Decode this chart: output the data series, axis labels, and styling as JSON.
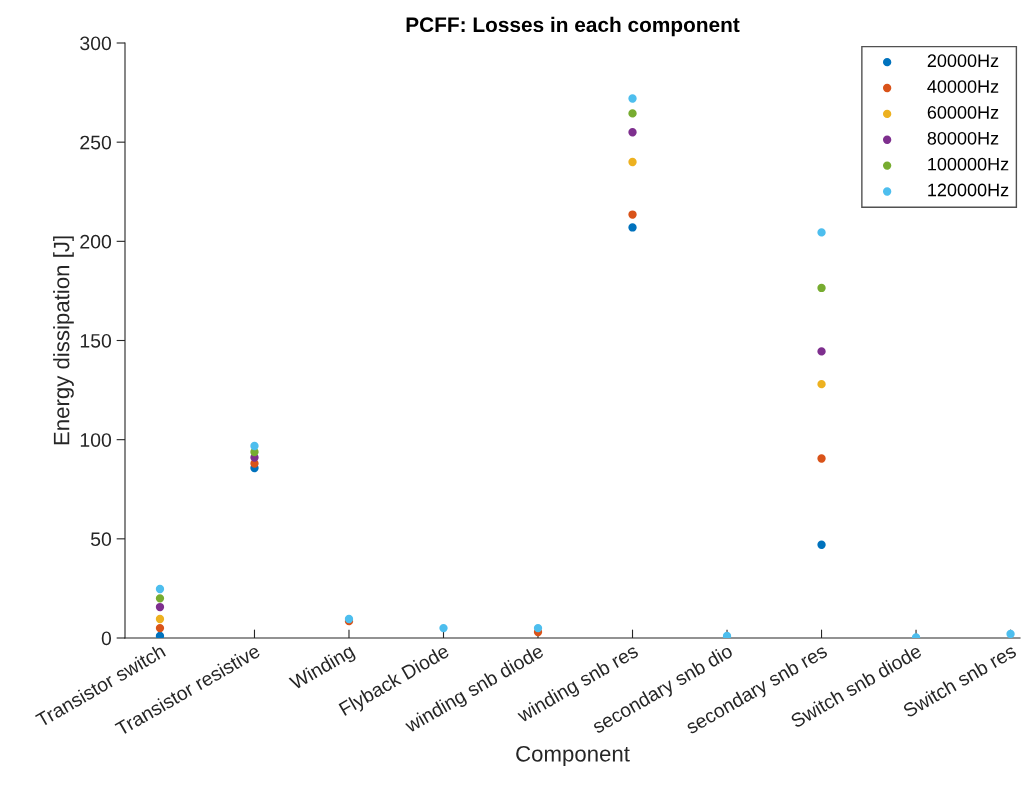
{
  "chart_data": {
    "type": "scatter",
    "title": "PCFF: Losses in each component",
    "xlabel": "Component",
    "ylabel": "Energy dissipation [J]",
    "categories": [
      "Transistor switch",
      "Transistor resistive",
      "Winding",
      "Flyback Diode",
      "winding snb diode",
      "winding snb res",
      "secondary snb dio",
      "secondary snb res",
      "Switch snb diode",
      "Switch snb res"
    ],
    "series": [
      {
        "name": "20000Hz",
        "color": "#0072bd",
        "values": [
          1,
          85.7,
          null,
          null,
          null,
          207,
          null,
          47,
          null,
          null
        ]
      },
      {
        "name": "40000Hz",
        "color": "#d95319",
        "values": [
          5,
          88,
          8.5,
          null,
          3,
          213.5,
          null,
          90.5,
          null,
          null
        ]
      },
      {
        "name": "60000Hz",
        "color": "#edb120",
        "values": [
          9.6,
          null,
          null,
          null,
          null,
          240,
          null,
          128,
          null,
          null
        ]
      },
      {
        "name": "80000Hz",
        "color": "#7e2f8e",
        "values": [
          15.6,
          91,
          null,
          null,
          null,
          255,
          null,
          144.5,
          null,
          null
        ]
      },
      {
        "name": "100000Hz",
        "color": "#77ac30",
        "values": [
          20,
          93.8,
          null,
          null,
          null,
          264.5,
          null,
          176.5,
          null,
          null
        ]
      },
      {
        "name": "120000Hz",
        "color": "#4dbeee",
        "values": [
          24.7,
          96.8,
          9.6,
          5,
          5,
          272,
          1,
          204.5,
          0.3,
          2
        ]
      }
    ],
    "ylim": [
      0,
      300
    ],
    "yticks": [
      0,
      50,
      100,
      150,
      200,
      250,
      300
    ],
    "legend": "top right",
    "marker": "circle",
    "grid": false
  }
}
